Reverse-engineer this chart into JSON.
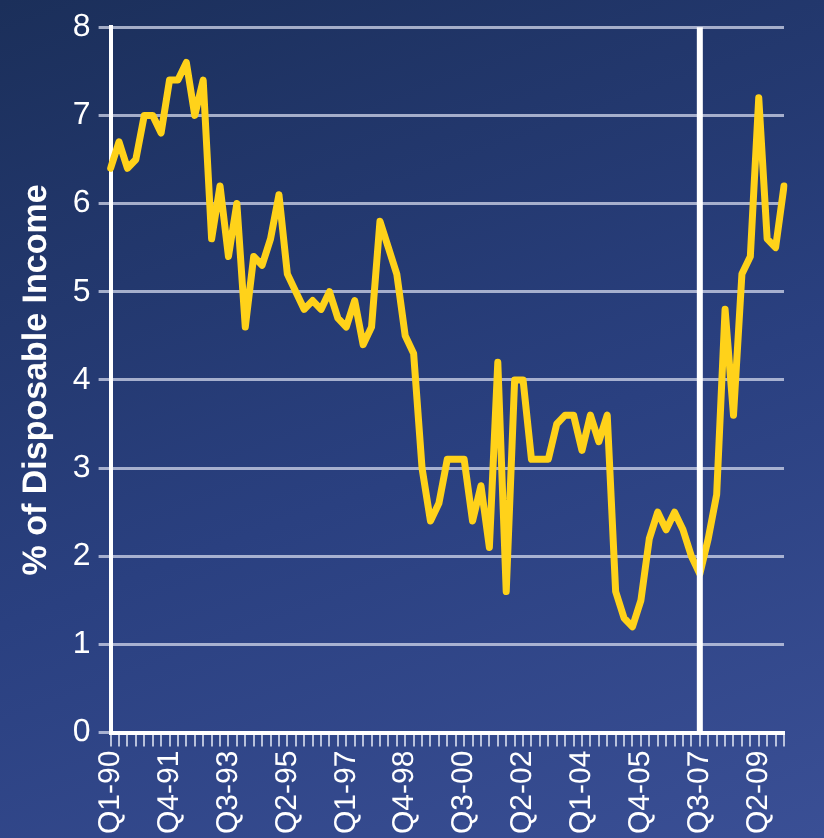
{
  "chart_data": {
    "type": "line",
    "ylabel": "% of Disposable Income",
    "categories": [
      "Q1-90",
      null,
      null,
      null,
      null,
      null,
      null,
      "Q4-91",
      null,
      null,
      null,
      null,
      null,
      null,
      "Q3-93",
      null,
      null,
      null,
      null,
      null,
      null,
      "Q2-95",
      null,
      null,
      null,
      null,
      null,
      null,
      "Q1-97",
      null,
      null,
      null,
      null,
      null,
      null,
      "Q4-98",
      null,
      null,
      null,
      null,
      null,
      null,
      "Q3-00",
      null,
      null,
      null,
      null,
      null,
      null,
      "Q2-02",
      null,
      null,
      null,
      null,
      null,
      null,
      "Q1-04",
      null,
      null,
      null,
      null,
      null,
      null,
      "Q4-05",
      null,
      null,
      null,
      null,
      null,
      null,
      "Q3-07",
      null,
      null,
      null,
      null,
      null,
      null,
      "Q2-09",
      null,
      null,
      null
    ],
    "series": [
      {
        "color": "#ffd21a",
        "values": [
          6.4,
          6.7,
          6.4,
          6.5,
          7.0,
          7.0,
          6.8,
          7.4,
          7.4,
          7.6,
          7.0,
          7.4,
          5.6,
          6.2,
          5.4,
          6.0,
          4.6,
          5.4,
          5.3,
          5.6,
          6.1,
          5.2,
          5.0,
          4.8,
          4.9,
          4.8,
          5.0,
          4.7,
          4.6,
          4.9,
          4.4,
          4.6,
          5.8,
          5.5,
          5.2,
          4.5,
          4.3,
          3.0,
          2.4,
          2.6,
          3.1,
          3.1,
          3.1,
          2.4,
          2.8,
          2.1,
          4.2,
          1.6,
          4.0,
          4.0,
          3.1,
          3.1,
          3.1,
          3.5,
          3.6,
          3.6,
          3.2,
          3.6,
          3.3,
          3.6,
          1.6,
          1.3,
          1.2,
          1.5,
          2.2,
          2.5,
          2.3,
          2.5,
          2.3,
          2.0,
          1.8,
          2.2,
          2.7,
          4.8,
          3.6,
          5.2,
          5.4,
          7.2,
          5.6,
          5.5,
          6.2
        ]
      }
    ],
    "ylim": [
      0,
      8
    ],
    "yticks": [
      0,
      1,
      2,
      3,
      4,
      5,
      6,
      7,
      8
    ],
    "grid": "y",
    "legend": false,
    "marker": "none",
    "line_style": "solid",
    "ref_lines": [
      {
        "axis": "x",
        "value": "Q3-07",
        "color": "#ffffff"
      }
    ]
  }
}
